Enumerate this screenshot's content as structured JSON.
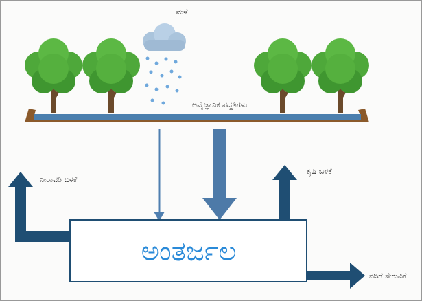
{
  "labels": {
    "rain": "ಮಳೆ",
    "unscientific_practices": "ಅವೈಜ್ಞಾನಿಕ ಪದ್ಧತಿಗಳು",
    "irrigation_use": "ನೀರಾವರಿ ಬಳಕೆ",
    "agriculture_use": "ಕೃಷಿ ಬಳಕೆ",
    "groundwater": "ಅಂತರ್ಜಲ",
    "river_discharge": "ನದಿಗೆ ಸೇರುವಿಕೆ"
  }
}
